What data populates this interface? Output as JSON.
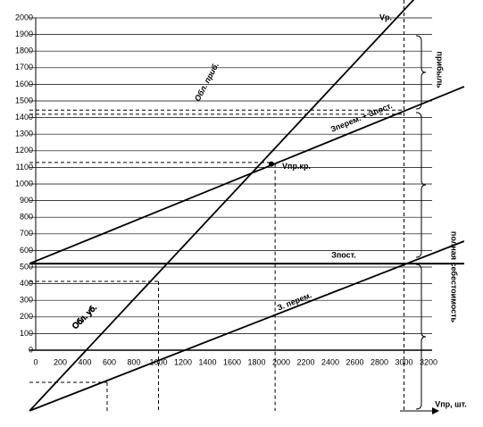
{
  "chart_data": {
    "type": "line",
    "xlim": [
      0,
      3200
    ],
    "ylim": [
      0,
      2000
    ],
    "xticks": [
      0,
      200,
      400,
      600,
      800,
      1000,
      1200,
      1400,
      1600,
      1800,
      2000,
      2200,
      2400,
      2600,
      2800,
      3000,
      3200
    ],
    "yticks": [
      0,
      100,
      200,
      300,
      400,
      500,
      600,
      700,
      800,
      900,
      1000,
      1100,
      1200,
      1300,
      1400,
      1500,
      1600,
      1700,
      1800,
      1900,
      2000
    ],
    "grid": true,
    "series": [
      {
        "name": "Vр.",
        "color": "#000000",
        "x": [
          -50,
          3080
        ],
        "values": [
          -365,
          2110
        ]
      },
      {
        "name": "Зперем. + Зпост.",
        "color": "#000000",
        "x": [
          -50,
          3490
        ],
        "values": [
          521,
          1586
        ]
      },
      {
        "name": "Зпост.",
        "color": "#000000",
        "x": [
          -50,
          3490
        ],
        "values": [
          521,
          521
        ]
      },
      {
        "name": "З. перем.",
        "color": "#000000",
        "x": [
          -50,
          3490
        ],
        "values": [
          -365,
          656
        ]
      }
    ],
    "hlines": [
      1445,
      1420,
      1130,
      414
    ],
    "vlines": [
      3000,
      1950,
      1000
    ],
    "break_even": {
      "label": "Vпр.кр.",
      "x": 1920,
      "y": 1120
    },
    "annotations": [
      "Обл. приб.",
      "Обл. уб.",
      "прибыль",
      "полная себестоимость",
      "Vпр, шт."
    ]
  }
}
